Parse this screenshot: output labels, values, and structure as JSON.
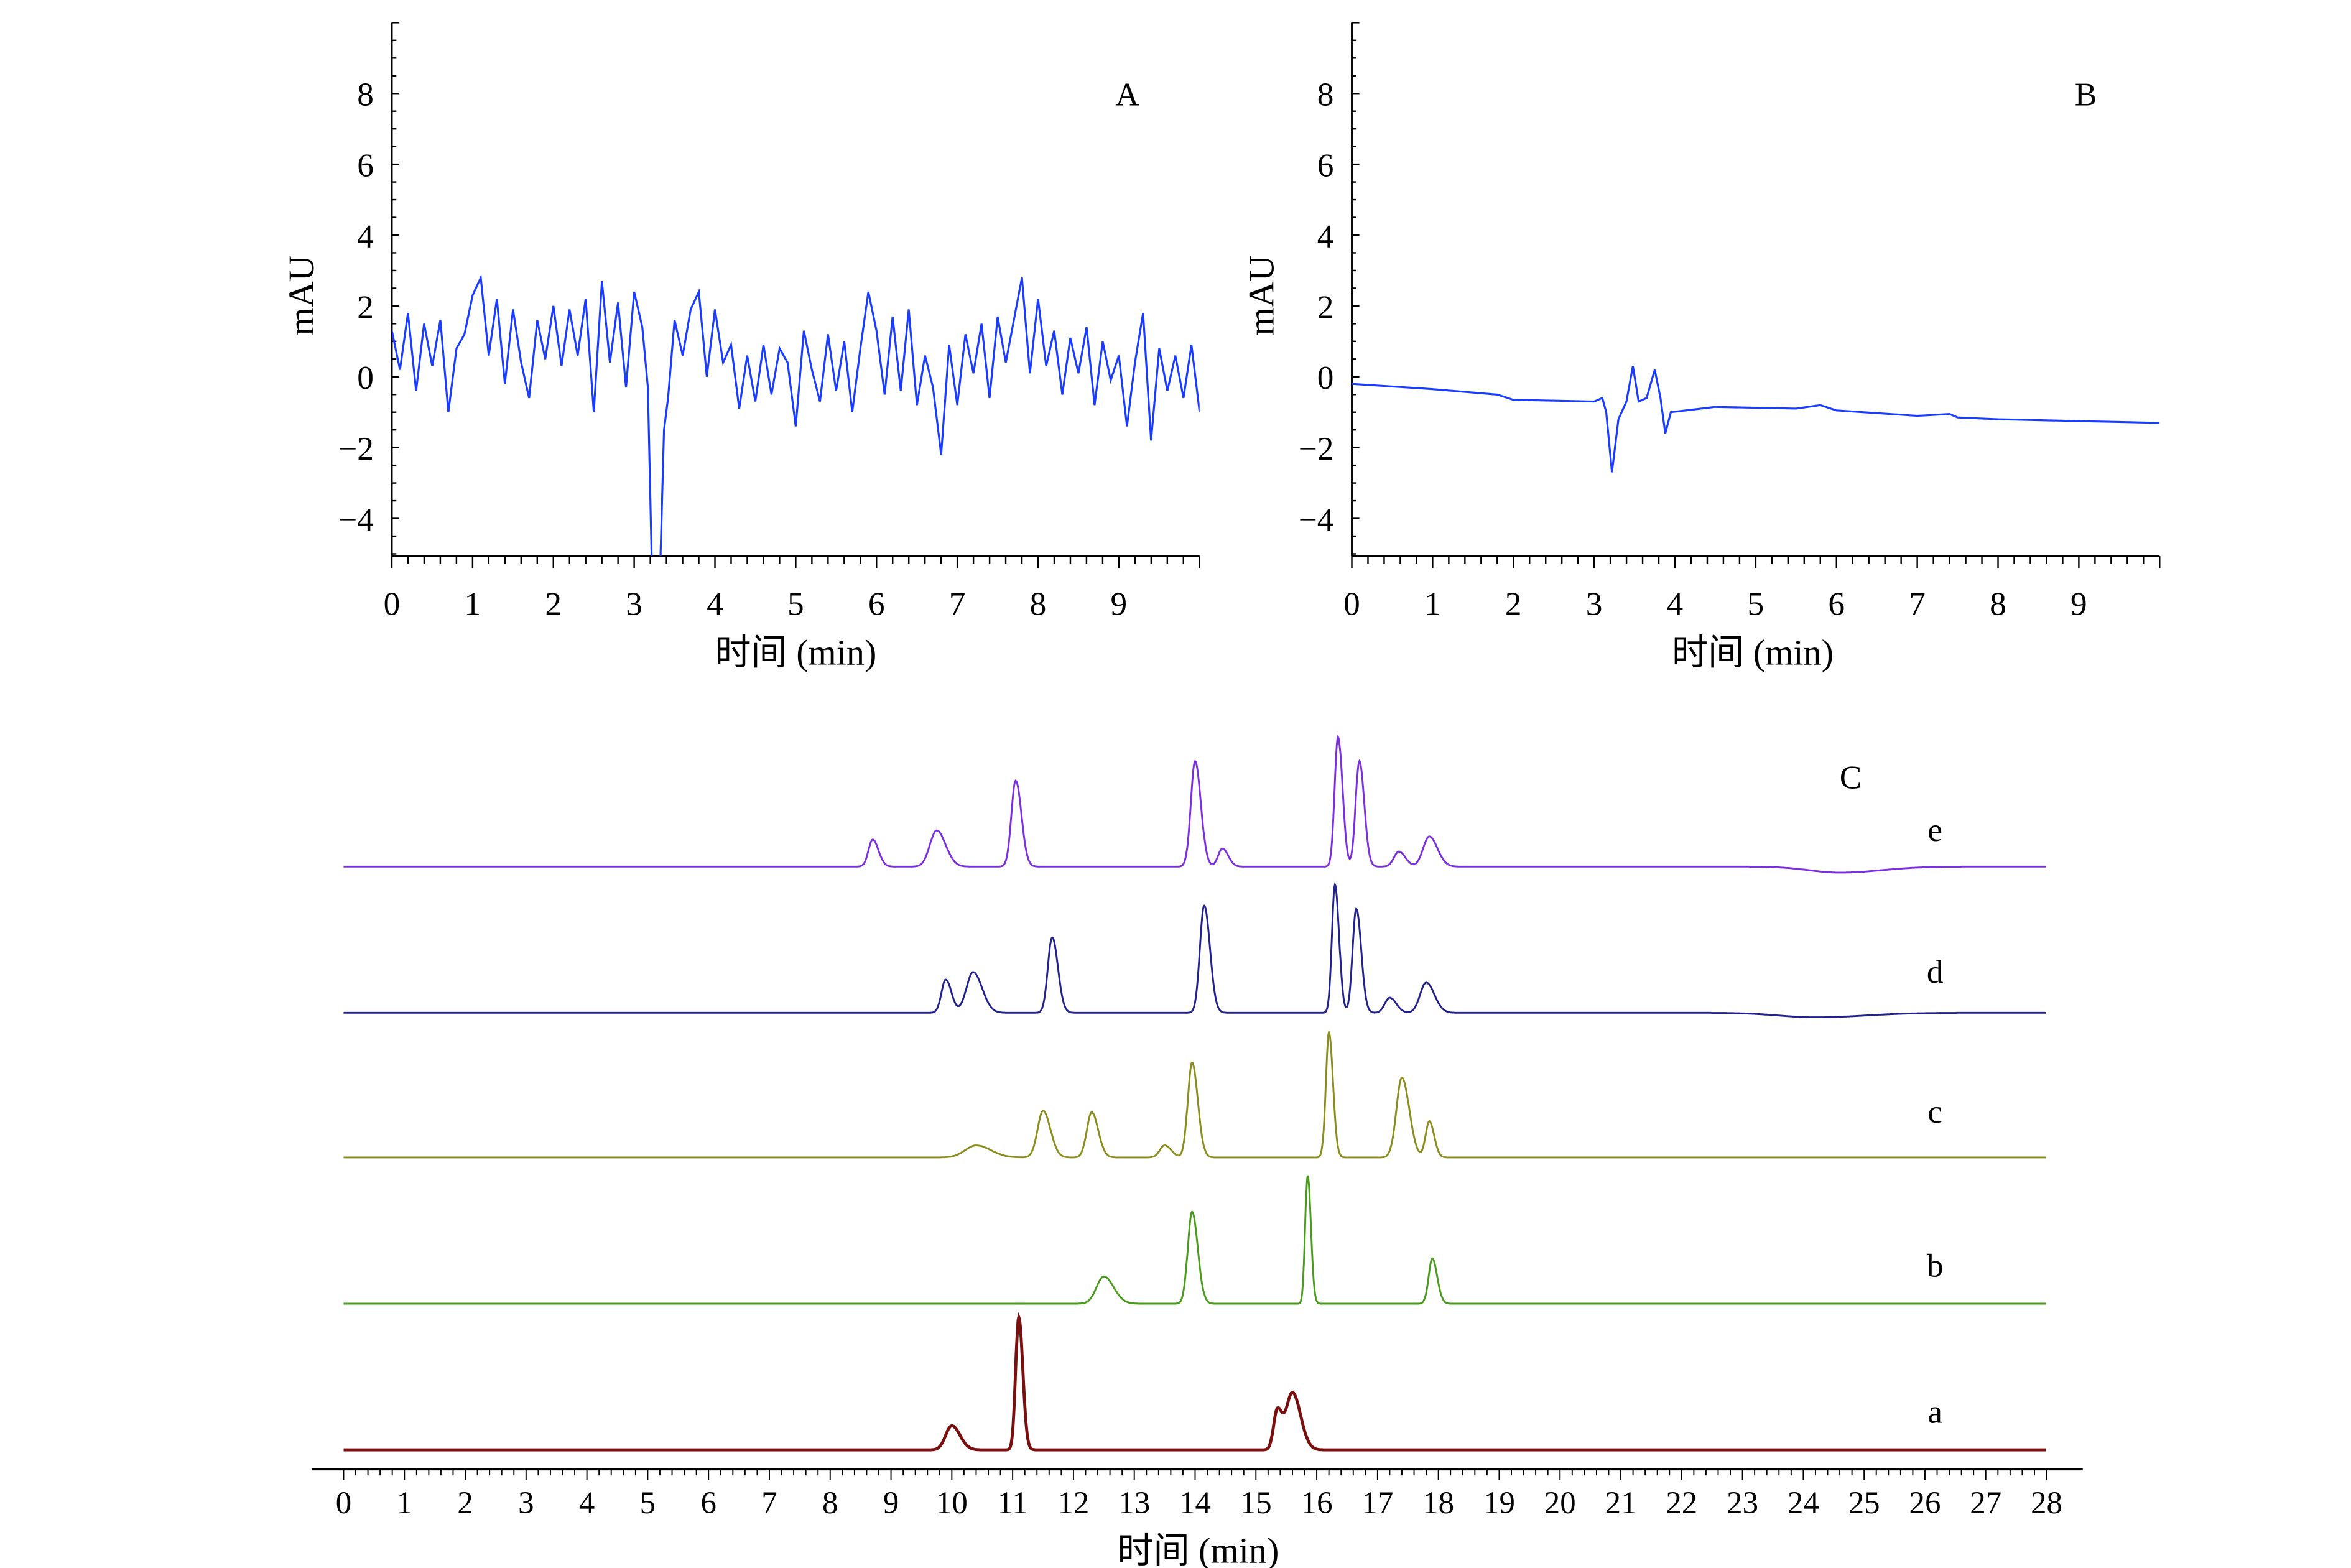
{
  "chart_data": [
    {
      "panel": "A",
      "type": "line",
      "label": "A",
      "xlabel": "时间 (min)",
      "ylabel": "mAU",
      "xlim": [
        0,
        10
      ],
      "ylim": [
        -5,
        10
      ],
      "xticks": [
        0,
        1,
        2,
        3,
        4,
        5,
        6,
        7,
        8,
        9
      ],
      "yticks": [
        -4,
        -2,
        0,
        2,
        4,
        6,
        8
      ],
      "color": "#1a3cff",
      "points": [
        [
          0,
          1.3
        ],
        [
          0.1,
          0.2
        ],
        [
          0.2,
          1.8
        ],
        [
          0.3,
          -0.4
        ],
        [
          0.4,
          1.5
        ],
        [
          0.5,
          0.3
        ],
        [
          0.6,
          1.6
        ],
        [
          0.7,
          -1.0
        ],
        [
          0.8,
          0.8
        ],
        [
          0.9,
          1.2
        ],
        [
          1.0,
          2.3
        ],
        [
          1.1,
          2.8
        ],
        [
          1.2,
          0.6
        ],
        [
          1.3,
          2.2
        ],
        [
          1.4,
          -0.2
        ],
        [
          1.5,
          1.9
        ],
        [
          1.6,
          0.4
        ],
        [
          1.7,
          -0.6
        ],
        [
          1.8,
          1.6
        ],
        [
          1.9,
          0.5
        ],
        [
          2.0,
          2.0
        ],
        [
          2.1,
          0.3
        ],
        [
          2.2,
          1.9
        ],
        [
          2.3,
          0.6
        ],
        [
          2.4,
          2.2
        ],
        [
          2.5,
          -1.0
        ],
        [
          2.6,
          2.7
        ],
        [
          2.7,
          0.4
        ],
        [
          2.8,
          2.1
        ],
        [
          2.9,
          -0.3
        ],
        [
          3.0,
          2.4
        ],
        [
          3.1,
          1.4
        ],
        [
          3.17,
          -0.3
        ],
        [
          3.22,
          -5.5
        ],
        [
          3.32,
          -5.5
        ],
        [
          3.37,
          -1.5
        ],
        [
          3.42,
          -0.6
        ],
        [
          3.5,
          1.6
        ],
        [
          3.6,
          0.6
        ],
        [
          3.7,
          1.9
        ],
        [
          3.8,
          2.4
        ],
        [
          3.9,
          0.0
        ],
        [
          4.0,
          1.9
        ],
        [
          4.1,
          0.4
        ],
        [
          4.2,
          0.9
        ],
        [
          4.3,
          -0.9
        ],
        [
          4.4,
          0.6
        ],
        [
          4.5,
          -0.7
        ],
        [
          4.6,
          0.9
        ],
        [
          4.7,
          -0.5
        ],
        [
          4.8,
          0.8
        ],
        [
          4.9,
          0.4
        ],
        [
          5.0,
          -1.4
        ],
        [
          5.1,
          1.3
        ],
        [
          5.2,
          0.2
        ],
        [
          5.3,
          -0.7
        ],
        [
          5.4,
          1.2
        ],
        [
          5.5,
          -0.4
        ],
        [
          5.6,
          1.0
        ],
        [
          5.7,
          -1.0
        ],
        [
          5.8,
          0.8
        ],
        [
          5.9,
          2.4
        ],
        [
          6.0,
          1.3
        ],
        [
          6.1,
          -0.5
        ],
        [
          6.2,
          1.7
        ],
        [
          6.3,
          -0.4
        ],
        [
          6.4,
          1.9
        ],
        [
          6.5,
          -0.8
        ],
        [
          6.6,
          0.6
        ],
        [
          6.7,
          -0.3
        ],
        [
          6.8,
          -2.2
        ],
        [
          6.9,
          0.9
        ],
        [
          7.0,
          -0.8
        ],
        [
          7.1,
          1.2
        ],
        [
          7.2,
          0.1
        ],
        [
          7.3,
          1.5
        ],
        [
          7.4,
          -0.6
        ],
        [
          7.5,
          1.7
        ],
        [
          7.6,
          0.4
        ],
        [
          7.8,
          2.8
        ],
        [
          7.9,
          0.1
        ],
        [
          8.0,
          2.2
        ],
        [
          8.1,
          0.3
        ],
        [
          8.2,
          1.3
        ],
        [
          8.3,
          -0.5
        ],
        [
          8.4,
          1.1
        ],
        [
          8.5,
          0.1
        ],
        [
          8.6,
          1.4
        ],
        [
          8.7,
          -0.8
        ],
        [
          8.8,
          1.0
        ],
        [
          8.9,
          -0.1
        ],
        [
          9.0,
          0.6
        ],
        [
          9.1,
          -1.4
        ],
        [
          9.2,
          0.4
        ],
        [
          9.3,
          1.8
        ],
        [
          9.4,
          -1.8
        ],
        [
          9.5,
          0.8
        ],
        [
          9.6,
          -0.4
        ],
        [
          9.7,
          0.6
        ],
        [
          9.8,
          -0.6
        ],
        [
          9.9,
          0.9
        ],
        [
          10.0,
          -1.0
        ]
      ]
    },
    {
      "panel": "B",
      "type": "line",
      "label": "B",
      "xlabel": "时间 (min)",
      "ylabel": "mAU",
      "xlim": [
        0,
        10
      ],
      "ylim": [
        -5,
        10
      ],
      "xticks": [
        0,
        1,
        2,
        3,
        4,
        5,
        6,
        7,
        8,
        9
      ],
      "yticks": [
        -4,
        -2,
        0,
        2,
        4,
        6,
        8
      ],
      "color": "#1a3cff",
      "points": [
        [
          0,
          -0.2
        ],
        [
          1,
          -0.35
        ],
        [
          1.8,
          -0.5
        ],
        [
          2,
          -0.65
        ],
        [
          3,
          -0.7
        ],
        [
          3.1,
          -0.6
        ],
        [
          3.15,
          -1.0
        ],
        [
          3.22,
          -2.7
        ],
        [
          3.3,
          -1.2
        ],
        [
          3.4,
          -0.7
        ],
        [
          3.48,
          0.3
        ],
        [
          3.55,
          -0.7
        ],
        [
          3.65,
          -0.6
        ],
        [
          3.75,
          0.2
        ],
        [
          3.82,
          -0.6
        ],
        [
          3.88,
          -1.6
        ],
        [
          3.95,
          -1.0
        ],
        [
          4.5,
          -0.85
        ],
        [
          5.5,
          -0.9
        ],
        [
          5.8,
          -0.8
        ],
        [
          6,
          -0.95
        ],
        [
          7,
          -1.1
        ],
        [
          7.4,
          -1.05
        ],
        [
          7.5,
          -1.15
        ],
        [
          8,
          -1.2
        ],
        [
          9,
          -1.25
        ],
        [
          10,
          -1.3
        ]
      ]
    },
    {
      "panel": "C",
      "type": "line",
      "label": "C",
      "xlabel": "时间 (min)",
      "xlim": [
        0,
        28
      ],
      "xticks": [
        0,
        1,
        2,
        3,
        4,
        5,
        6,
        7,
        8,
        9,
        10,
        11,
        12,
        13,
        14,
        15,
        16,
        17,
        18,
        19,
        20,
        21,
        22,
        23,
        24,
        25,
        26,
        27,
        28
      ],
      "intensity_unit": "relative",
      "traces": [
        {
          "name": "e",
          "color": "#7b2fe0",
          "peaks": [
            {
              "rt": 8.7,
              "h": 18,
              "w": 0.07
            },
            {
              "rt": 9.75,
              "h": 24,
              "w": 0.11
            },
            {
              "rt": 11.05,
              "h": 57,
              "w": 0.07
            },
            {
              "rt": 14.0,
              "h": 70,
              "w": 0.07
            },
            {
              "rt": 14.45,
              "h": 12,
              "w": 0.07
            },
            {
              "rt": 16.35,
              "h": 86,
              "w": 0.055
            },
            {
              "rt": 16.7,
              "h": 70,
              "w": 0.06
            },
            {
              "rt": 17.35,
              "h": 10,
              "w": 0.08
            },
            {
              "rt": 17.85,
              "h": 20,
              "w": 0.1
            },
            {
              "rt": 24.6,
              "h": -4,
              "w": 0.5
            }
          ]
        },
        {
          "name": "d",
          "color": "#22228f",
          "peaks": [
            {
              "rt": 9.9,
              "h": 22,
              "w": 0.07
            },
            {
              "rt": 10.35,
              "h": 27,
              "w": 0.11
            },
            {
              "rt": 11.65,
              "h": 50,
              "w": 0.07
            },
            {
              "rt": 14.15,
              "h": 71,
              "w": 0.07
            },
            {
              "rt": 16.3,
              "h": 85,
              "w": 0.05
            },
            {
              "rt": 16.65,
              "h": 69,
              "w": 0.06
            },
            {
              "rt": 17.2,
              "h": 10,
              "w": 0.08
            },
            {
              "rt": 17.8,
              "h": 20,
              "w": 0.1
            },
            {
              "rt": 24.2,
              "h": -3,
              "w": 0.6
            }
          ]
        },
        {
          "name": "c",
          "color": "#8c8c1e",
          "peaks": [
            {
              "rt": 10.4,
              "h": 8,
              "w": 0.18
            },
            {
              "rt": 11.5,
              "h": 31,
              "w": 0.09
            },
            {
              "rt": 12.3,
              "h": 30,
              "w": 0.08
            },
            {
              "rt": 13.5,
              "h": 8,
              "w": 0.08
            },
            {
              "rt": 13.95,
              "h": 63,
              "w": 0.07
            },
            {
              "rt": 16.2,
              "h": 83,
              "w": 0.05
            },
            {
              "rt": 17.4,
              "h": 53,
              "w": 0.09
            },
            {
              "rt": 17.85,
              "h": 24,
              "w": 0.06
            }
          ]
        },
        {
          "name": "b",
          "color": "#4a9a1e",
          "peaks": [
            {
              "rt": 12.5,
              "h": 18,
              "w": 0.12
            },
            {
              "rt": 13.95,
              "h": 61,
              "w": 0.07
            },
            {
              "rt": 15.85,
              "h": 85,
              "w": 0.04
            },
            {
              "rt": 17.9,
              "h": 30,
              "w": 0.06
            }
          ]
        },
        {
          "name": "a",
          "color": "#7a0f0f",
          "peaks": [
            {
              "rt": 10.0,
              "h": 16,
              "w": 0.1
            },
            {
              "rt": 11.1,
              "h": 88,
              "w": 0.05
            },
            {
              "rt": 15.35,
              "h": 26,
              "w": 0.06
            },
            {
              "rt": 15.6,
              "h": 38,
              "w": 0.1
            }
          ]
        }
      ]
    }
  ]
}
